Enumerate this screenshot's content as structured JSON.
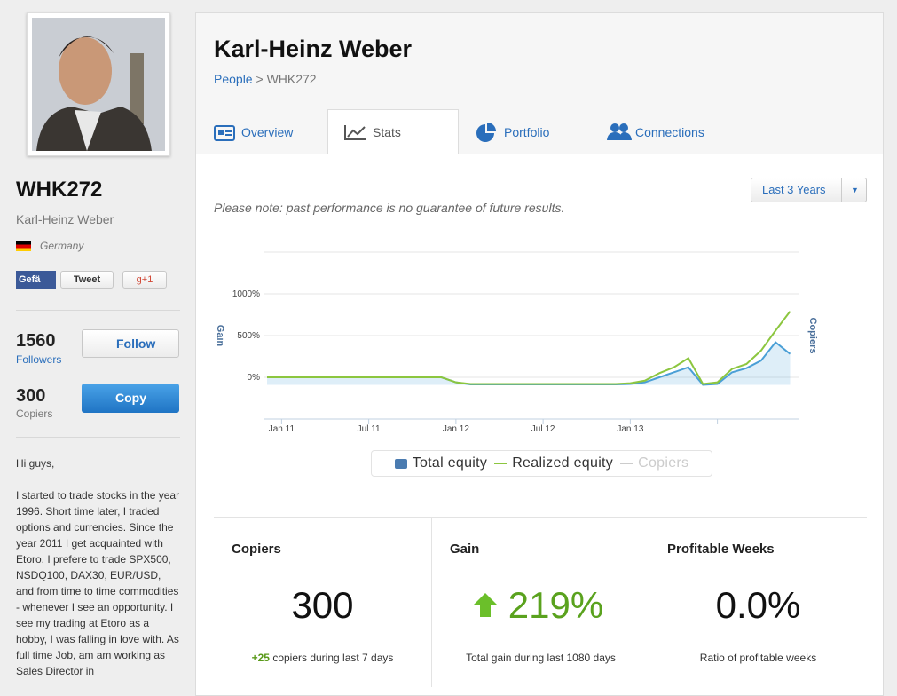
{
  "profile": {
    "username": "WHK272",
    "name": "Karl-Heinz Weber",
    "country": "Germany",
    "social": [
      "Gefä",
      "Tweet",
      "g+1"
    ],
    "followers": {
      "count": 1560,
      "label": "Followers"
    },
    "copiers": {
      "count": 300,
      "label": "Copiers"
    },
    "follow_button": "Follow",
    "copy_button": "Copy",
    "bio": [
      "Hi guys,",
      "I started to trade stocks in the year 1996. Short time later, I traded options and currencies. Since the year 2011 I get acquainted with Etoro. I prefere to trade SPX500, NSDQ100, DAX30, EUR/USD, and from time to time commodities - whenever I see an opportunity. I see my trading at Etoro as a hobby, I was falling in love with. As full time Job, am am working as Sales Director in"
    ]
  },
  "header": {
    "title": "Karl-Heinz Weber",
    "breadcrumb": [
      "People",
      "WHK272"
    ],
    "breadcrumb_separator": ">"
  },
  "tabs": [
    "Overview",
    "Stats",
    "Portfolio",
    "Connections"
  ],
  "range_select": "Last 3 Years",
  "note": "Please note: past performance is no guarantee of future results.",
  "chart_data": {
    "type": "line",
    "y_label": "Gain",
    "y2_label": "Copiers",
    "categories": [
      null,
      "Jan 11",
      null,
      null,
      null,
      null,
      null,
      "Jul 11",
      null,
      null,
      null,
      null,
      null,
      "Jan 12",
      null,
      null,
      null,
      null,
      null,
      "Jul 12",
      null,
      null,
      null,
      null,
      null,
      "Jan 13",
      null,
      null,
      null,
      null,
      null,
      null,
      null,
      null,
      null,
      null,
      null
    ],
    "series": [
      {
        "name": "Total equity",
        "color": "#4a9fd6",
        "area": true,
        "values": [
          0,
          0,
          0,
          0,
          0,
          0,
          0,
          0,
          0,
          0,
          0,
          0,
          0,
          -60,
          -85,
          -85,
          -85,
          -85,
          -85,
          -85,
          -85,
          -85,
          -85,
          -85,
          -85,
          -80,
          -60,
          0,
          60,
          120,
          -90,
          -80,
          60,
          110,
          200,
          420,
          280
        ]
      },
      {
        "name": "Realized equity",
        "color": "#8cc63f",
        "values": [
          0,
          0,
          0,
          0,
          0,
          0,
          0,
          0,
          0,
          0,
          0,
          0,
          0,
          -60,
          -80,
          -80,
          -80,
          -80,
          -80,
          -80,
          -80,
          -80,
          -80,
          -80,
          -80,
          -70,
          -40,
          50,
          120,
          230,
          -80,
          -60,
          100,
          160,
          320,
          560,
          790
        ]
      }
    ],
    "hidden_series": [
      {
        "name": "Copiers",
        "color": "#cccccc"
      }
    ],
    "ylim": [
      -500,
      1500
    ],
    "yticks": [
      {
        "value": 0,
        "label": "0%"
      },
      {
        "value": 500,
        "label": "500%"
      },
      {
        "value": 1000,
        "label": "1000%"
      }
    ],
    "grid": true
  },
  "stats": [
    {
      "title": "Copiers",
      "value": "300",
      "change": "+25",
      "detail": "copiers during last 7 days"
    },
    {
      "title": "Gain",
      "value": "219%",
      "detail": "Total gain during last 1080 days"
    },
    {
      "title": "Profitable Weeks",
      "value": "0.0%",
      "detail": "Ratio of profitable weeks"
    }
  ]
}
